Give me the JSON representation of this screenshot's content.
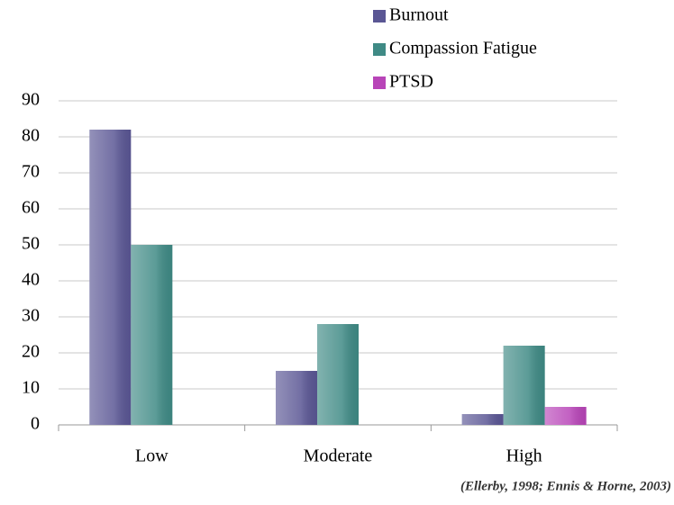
{
  "chart_data": {
    "type": "bar",
    "categories": [
      "Low",
      "Moderate",
      "High"
    ],
    "series": [
      {
        "name": "Burnout",
        "color": "#5a5694",
        "values": [
          82,
          15,
          3
        ]
      },
      {
        "name": "Compassion Fatigue",
        "color": "#3f8a85",
        "values": [
          50,
          28,
          22
        ]
      },
      {
        "name": "PTSD",
        "color": "#b845b8",
        "values": [
          0,
          0,
          5
        ]
      }
    ],
    "ylim": [
      0,
      90
    ],
    "yticks": [
      0,
      10,
      20,
      30,
      40,
      50,
      60,
      70,
      80,
      90
    ],
    "grid": true,
    "legend": "top-right",
    "annotation": "(Ellerby, 1998;  Ennis & Horne, 2003)"
  }
}
